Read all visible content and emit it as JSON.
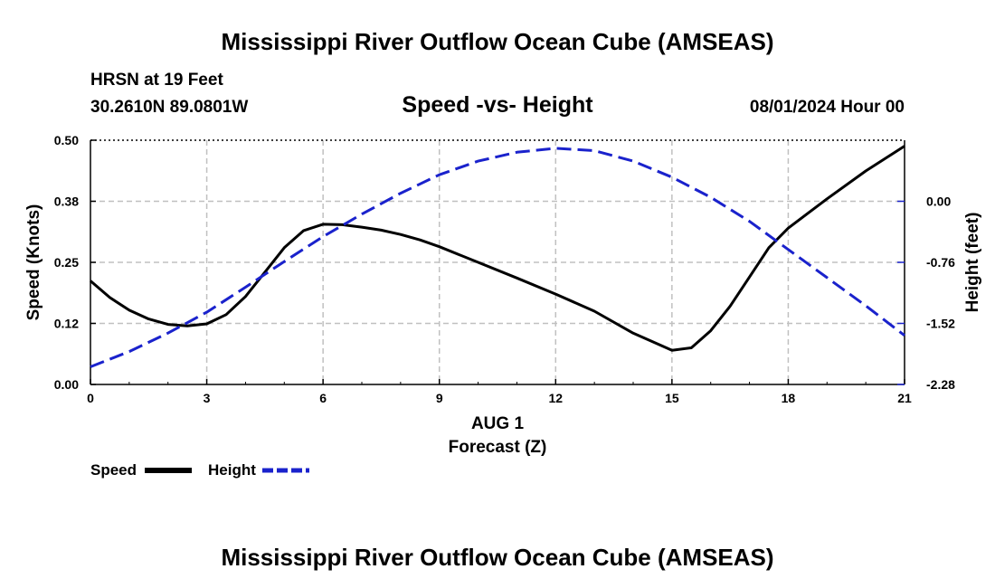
{
  "header": {
    "title": "Mississippi River Outflow Ocean Cube (AMSEAS)",
    "station": "HRSN at 19 Feet",
    "coords": "30.2610N  89.0801W",
    "plot_title": "Speed -vs- Height",
    "datetime": "08/01/2024 Hour 00"
  },
  "footer": {
    "title": "Mississippi River Outflow Ocean Cube (AMSEAS)"
  },
  "chart_data": {
    "type": "line",
    "title": "Speed -vs- Height",
    "xlabel": "Forecast (Z)",
    "xlabel_date": "AUG 1",
    "ylabel_left": "Speed (Knots)",
    "ylabel_right": "Height (feet)",
    "xlim": [
      0,
      21
    ],
    "ylim_left": [
      0,
      0.5
    ],
    "ylim_right": [
      -2.28,
      0.76
    ],
    "x_ticks": [
      0,
      3,
      6,
      9,
      12,
      15,
      18,
      21
    ],
    "x_tick_labels": [
      "0",
      "3",
      "6",
      "9",
      "12",
      "15",
      "18",
      "21"
    ],
    "left_ticks": [
      0,
      0.125,
      0.25,
      0.375,
      0.5
    ],
    "left_tick_labels": [
      "0.00",
      "0.12",
      "0.25",
      "0.38",
      "0.50"
    ],
    "right_ticks": [
      -2.28,
      -1.52,
      -0.76,
      0.0
    ],
    "right_tick_labels": [
      "-2.28",
      "-1.52",
      "-0.76",
      "0.00"
    ],
    "grid": true,
    "series": [
      {
        "name": "Speed",
        "axis": "left",
        "color": "#000000",
        "style": "solid",
        "x": [
          0,
          0.5,
          1,
          1.5,
          2,
          2.5,
          3,
          3.5,
          4,
          4.5,
          5,
          5.5,
          6,
          6.5,
          7,
          7.5,
          8,
          8.5,
          9,
          10,
          11,
          12,
          13,
          14,
          15,
          15.5,
          16,
          16.5,
          17,
          17.5,
          18,
          19,
          20,
          21
        ],
        "y": [
          0.212,
          0.178,
          0.152,
          0.134,
          0.123,
          0.12,
          0.124,
          0.143,
          0.18,
          0.23,
          0.28,
          0.315,
          0.328,
          0.327,
          0.322,
          0.316,
          0.307,
          0.296,
          0.282,
          0.25,
          0.218,
          0.185,
          0.15,
          0.105,
          0.07,
          0.075,
          0.11,
          0.16,
          0.22,
          0.28,
          0.32,
          0.38,
          0.437,
          0.488
        ]
      },
      {
        "name": "Height",
        "axis": "right",
        "color": "#1a22cc",
        "style": "dashed",
        "x": [
          0,
          1,
          2,
          3,
          4,
          5,
          6,
          7,
          8,
          9,
          10,
          11,
          12,
          13,
          14,
          15,
          16,
          17,
          18,
          19,
          20,
          21
        ],
        "y": [
          -2.06,
          -1.87,
          -1.64,
          -1.38,
          -1.07,
          -0.75,
          -0.44,
          -0.16,
          0.1,
          0.33,
          0.5,
          0.61,
          0.66,
          0.63,
          0.5,
          0.3,
          0.05,
          -0.25,
          -0.6,
          -0.95,
          -1.3,
          -1.67
        ]
      }
    ],
    "legend": [
      "Speed",
      "Height"
    ],
    "legend_position": "bottom-left"
  }
}
